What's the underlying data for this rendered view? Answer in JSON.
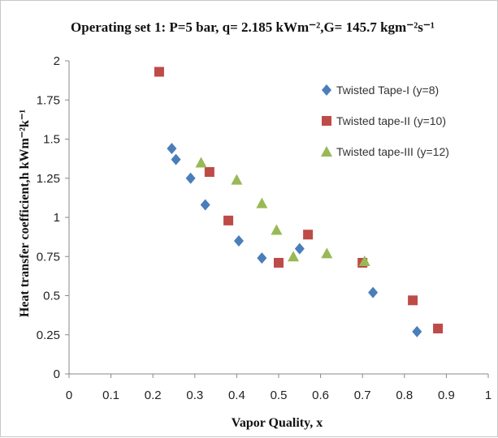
{
  "chart_data": {
    "type": "scatter",
    "title": "Operating set 1: P=5 bar, q= 2.185 kWm⁻²,G= 145.7 kgm⁻²s⁻¹",
    "xlabel": "Vapor Quality, x",
    "ylabel": "Heat transfer coefficient,h kWm⁻²k⁻¹",
    "xlim": [
      0,
      1
    ],
    "ylim": [
      0,
      2
    ],
    "xticks": [
      "0",
      "0.1",
      "0.2",
      "0.3",
      "0.4",
      "0.5",
      "0.6",
      "0.7",
      "0.8",
      "0.9",
      "1"
    ],
    "yticks": [
      "0",
      "0.25",
      "0.5",
      "0.75",
      "1",
      "1.25",
      "1.5",
      "1.75",
      "2"
    ],
    "grid": false,
    "legend_position": "top-right",
    "series": [
      {
        "name": "Twisted Tape-I (y=8)",
        "marker": "diamond",
        "color": "#4a7ebb",
        "points": [
          [
            0.245,
            1.44
          ],
          [
            0.255,
            1.37
          ],
          [
            0.29,
            1.25
          ],
          [
            0.325,
            1.08
          ],
          [
            0.405,
            0.85
          ],
          [
            0.46,
            0.74
          ],
          [
            0.55,
            0.8
          ],
          [
            0.725,
            0.52
          ],
          [
            0.83,
            0.27
          ]
        ]
      },
      {
        "name": "Twisted tape-II (y=10)",
        "marker": "square",
        "color": "#be4b48",
        "points": [
          [
            0.215,
            1.93
          ],
          [
            0.335,
            1.29
          ],
          [
            0.38,
            0.98
          ],
          [
            0.5,
            0.71
          ],
          [
            0.57,
            0.89
          ],
          [
            0.7,
            0.71
          ],
          [
            0.82,
            0.47
          ],
          [
            0.88,
            0.29
          ]
        ]
      },
      {
        "name": "Twisted tape-III (y=12)",
        "marker": "triangle",
        "color": "#98b954",
        "points": [
          [
            0.315,
            1.35
          ],
          [
            0.4,
            1.24
          ],
          [
            0.46,
            1.09
          ],
          [
            0.495,
            0.92
          ],
          [
            0.535,
            0.75
          ],
          [
            0.615,
            0.77
          ],
          [
            0.705,
            0.72
          ]
        ]
      }
    ]
  }
}
